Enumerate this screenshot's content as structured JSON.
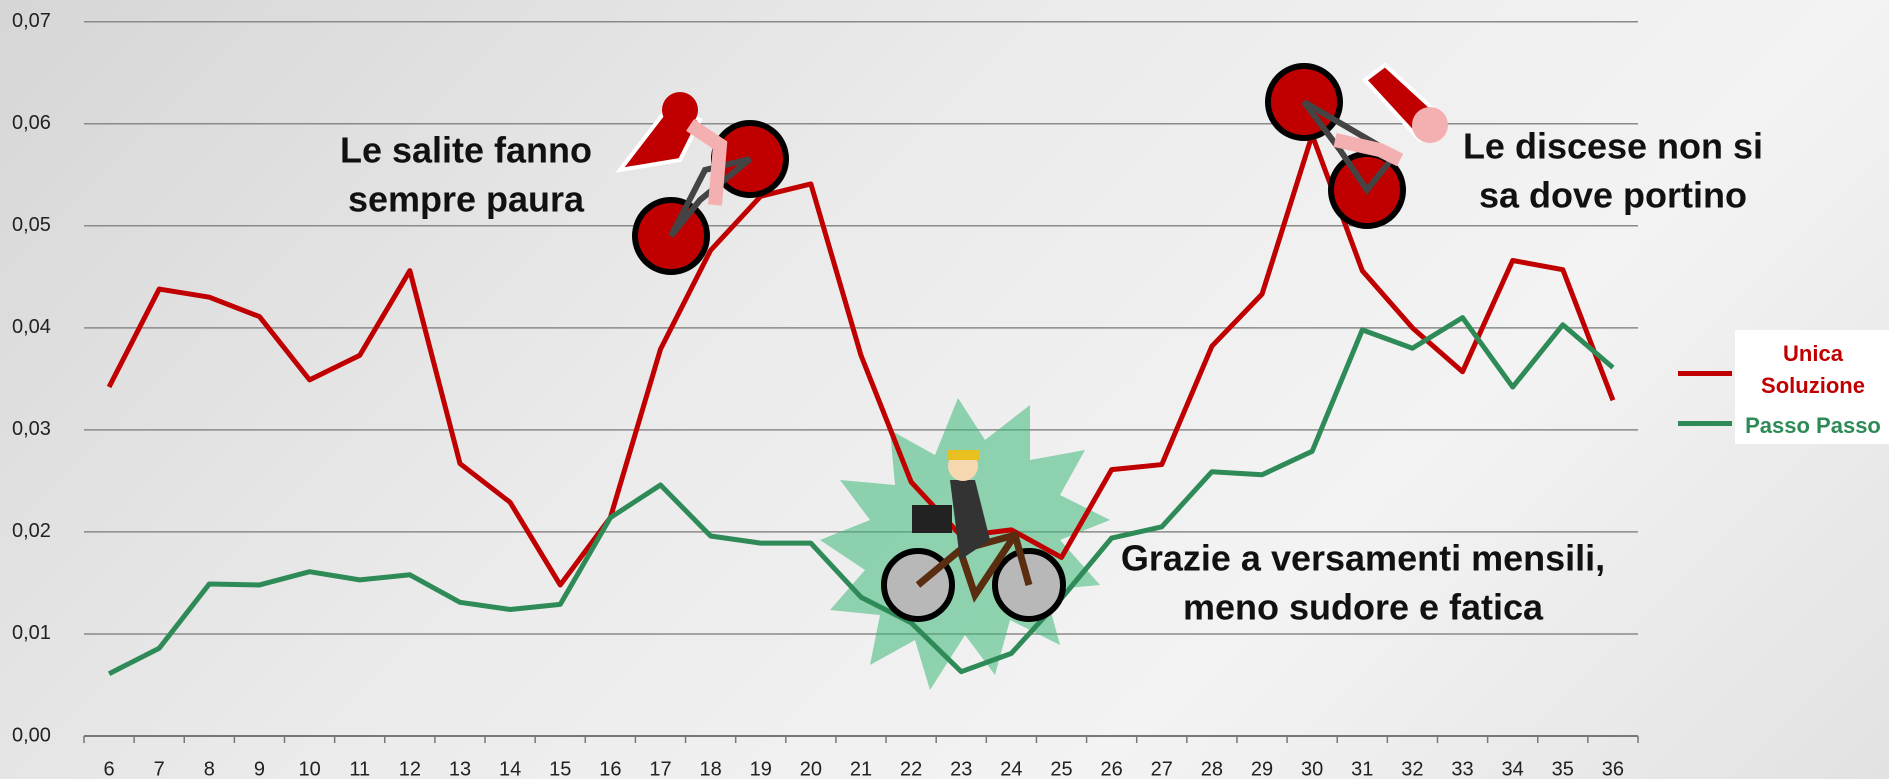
{
  "chart_data": {
    "type": "line",
    "categories": [
      "6",
      "7",
      "8",
      "9",
      "10",
      "11",
      "12",
      "13",
      "14",
      "15",
      "16",
      "17",
      "18",
      "19",
      "20",
      "21",
      "22",
      "23",
      "24",
      "25",
      "26",
      "27",
      "28",
      "29",
      "30",
      "31",
      "32",
      "33",
      "34",
      "35",
      "36"
    ],
    "series": [
      {
        "name": "Unica Soluzione",
        "color": "#c00000",
        "values": [
          0.0342,
          0.0438,
          0.043,
          0.0411,
          0.0349,
          0.0373,
          0.0456,
          0.0267,
          0.0229,
          0.0148,
          0.0214,
          0.0379,
          0.0476,
          0.0529,
          0.0541,
          0.0373,
          0.0249,
          0.0196,
          0.0202,
          0.0175,
          0.0261,
          0.0266,
          0.0382,
          0.0433,
          0.0589,
          0.0456,
          0.04,
          0.0357,
          0.0466,
          0.0457,
          0.0329
        ]
      },
      {
        "name": "Passo Passo",
        "color": "#2e8b57",
        "values": [
          0.0061,
          0.0086,
          0.0149,
          0.0148,
          0.0161,
          0.0153,
          0.0158,
          0.0131,
          0.0124,
          0.0129,
          0.0214,
          0.0246,
          0.0196,
          0.0189,
          0.0189,
          0.0136,
          0.0111,
          0.0063,
          0.0081,
          0.0135,
          0.0194,
          0.0205,
          0.0259,
          0.0256,
          0.0279,
          0.0398,
          0.038,
          0.041,
          0.0342,
          0.0403,
          0.0361
        ]
      }
    ],
    "ylim": [
      0,
      0.07
    ],
    "yticks": [
      {
        "value": 0,
        "label": "0,00"
      },
      {
        "value": 0.01,
        "label": "0,01"
      },
      {
        "value": 0.02,
        "label": "0,02"
      },
      {
        "value": 0.03,
        "label": "0,03"
      },
      {
        "value": 0.04,
        "label": "0,04"
      },
      {
        "value": 0.05,
        "label": "0,05"
      },
      {
        "value": 0.06,
        "label": "0,06"
      },
      {
        "value": 0.07,
        "label": "0,07"
      }
    ],
    "grid": true,
    "legend": "right",
    "annotations": [
      {
        "lines": [
          "Le salite fanno",
          "sempre paura"
        ]
      },
      {
        "lines": [
          "Le discese non si",
          "sa dove portino"
        ]
      },
      {
        "lines": [
          "Grazie a versamenti mensili,",
          "meno sudore e fatica"
        ]
      }
    ]
  }
}
